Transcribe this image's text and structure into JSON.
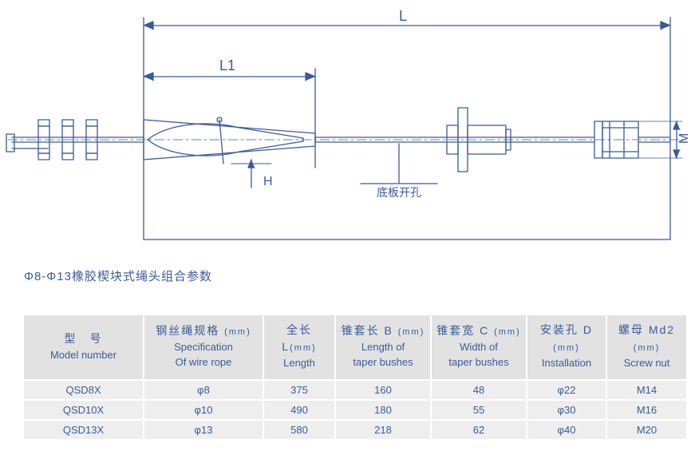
{
  "diagram": {
    "stroke": "#3a5a9a",
    "stroke_width": 1.3,
    "labels": {
      "L": "L",
      "L1": "L1",
      "H": "H",
      "M": "M",
      "baseplate": "底板开孔"
    },
    "font_size": 16,
    "label_font_size": 14
  },
  "title": "Φ8-Φ13橡胶楔块式绳头组合参数",
  "table": {
    "header_bg": "#e2e2e2",
    "cell_bg": "#eeeeee",
    "text_color": "#3a5a9a",
    "columns": [
      {
        "cn": "型　号",
        "unit": "",
        "en": "Model number"
      },
      {
        "cn": "钢丝绳规格",
        "unit": "(mm)",
        "en": "Specification\nOf  wire rope"
      },
      {
        "cn": "全长 L",
        "unit": "(mm)",
        "en": "Length"
      },
      {
        "cn": "锥套长 B",
        "unit": "(mm)",
        "en": "Length of\ntaper bushes"
      },
      {
        "cn": "锥套宽 C",
        "unit": "(mm)",
        "en": "Width of\ntaper bushes"
      },
      {
        "cn": "安装孔 D",
        "unit": "(mm)",
        "en": "Installation"
      },
      {
        "cn": "螺母  Md2",
        "unit": "(mm)",
        "en": "Screw nut"
      }
    ],
    "rows": [
      [
        "QSD8X",
        "φ8",
        "375",
        "160",
        "48",
        "φ22",
        "M14"
      ],
      [
        "QSD10X",
        "φ10",
        "490",
        "180",
        "55",
        "φ30",
        "M16"
      ],
      [
        "QSD13X",
        "φ13",
        "580",
        "218",
        "62",
        "φ40",
        "M20"
      ]
    ]
  }
}
